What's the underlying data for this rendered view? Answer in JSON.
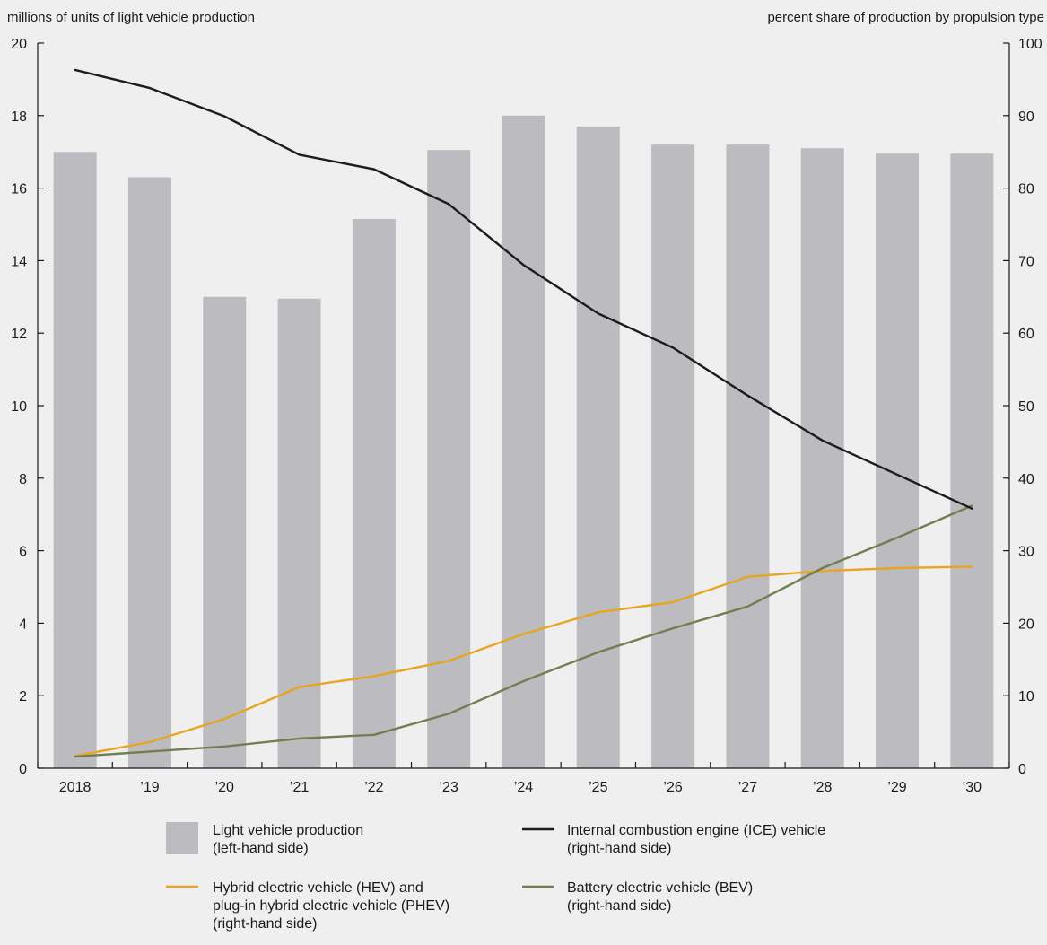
{
  "chart_data": {
    "type": "bar",
    "left_axis_label": "millions of units of light vehicle production",
    "right_axis_label": "percent share of production by propulsion type",
    "categories": [
      "2018",
      "’19",
      "’20",
      "’21",
      "’22",
      "’23",
      "’24",
      "’25",
      "’26",
      "’27",
      "’28",
      "’29",
      "’30"
    ],
    "left_ylim": [
      0,
      20
    ],
    "left_ticks": [
      0,
      2,
      4,
      6,
      8,
      10,
      12,
      14,
      16,
      18,
      20
    ],
    "right_ylim": [
      0,
      100
    ],
    "right_ticks": [
      0,
      10,
      20,
      30,
      40,
      50,
      60,
      70,
      80,
      90,
      100
    ],
    "bars": {
      "name": "Light vehicle production",
      "axis": "left",
      "color": "#bcbcc0",
      "values": [
        17.0,
        16.3,
        13.0,
        12.95,
        15.15,
        17.05,
        18.0,
        17.7,
        17.2,
        17.2,
        17.1,
        16.95,
        16.95
      ]
    },
    "series": [
      {
        "name": "Internal combustion engine (ICE) vehicle",
        "axis": "right",
        "color": "#1c1c1c",
        "values": [
          96.3,
          93.8,
          89.9,
          84.6,
          82.6,
          77.8,
          69.4,
          62.7,
          58.0,
          51.4,
          45.2,
          40.5,
          35.8
        ]
      },
      {
        "name": "Hybrid electric vehicle (HEV) and plug-in hybrid electric vehicle (PHEV)",
        "axis": "right",
        "color": "#e7a521",
        "values": [
          1.7,
          3.6,
          6.8,
          11.2,
          12.7,
          14.8,
          18.5,
          21.5,
          22.9,
          26.4,
          27.2,
          27.6,
          27.8
        ]
      },
      {
        "name": "Battery electric vehicle (BEV)",
        "axis": "right",
        "color": "#6f7f52",
        "values": [
          1.6,
          2.3,
          3.0,
          4.1,
          4.6,
          7.5,
          12.0,
          16.0,
          19.3,
          22.3,
          27.6,
          31.8,
          36.2
        ]
      }
    ],
    "grid": false
  },
  "legend": [
    {
      "key": "bars",
      "swatch": "box",
      "color": "#bcbcc0",
      "lines": [
        "Light vehicle production",
        "(left-hand side)"
      ]
    },
    {
      "key": "ice",
      "swatch": "line",
      "color": "#1c1c1c",
      "lines": [
        "Internal combustion engine (ICE) vehicle",
        "(right-hand side)"
      ]
    },
    {
      "key": "hev",
      "swatch": "line",
      "color": "#e7a521",
      "lines": [
        "Hybrid electric vehicle (HEV) and",
        "plug-in hybrid electric vehicle (PHEV)",
        "(right-hand side)"
      ]
    },
    {
      "key": "bev",
      "swatch": "line",
      "color": "#6f7f52",
      "lines": [
        "Battery electric vehicle (BEV)",
        "(right-hand side)"
      ]
    }
  ]
}
